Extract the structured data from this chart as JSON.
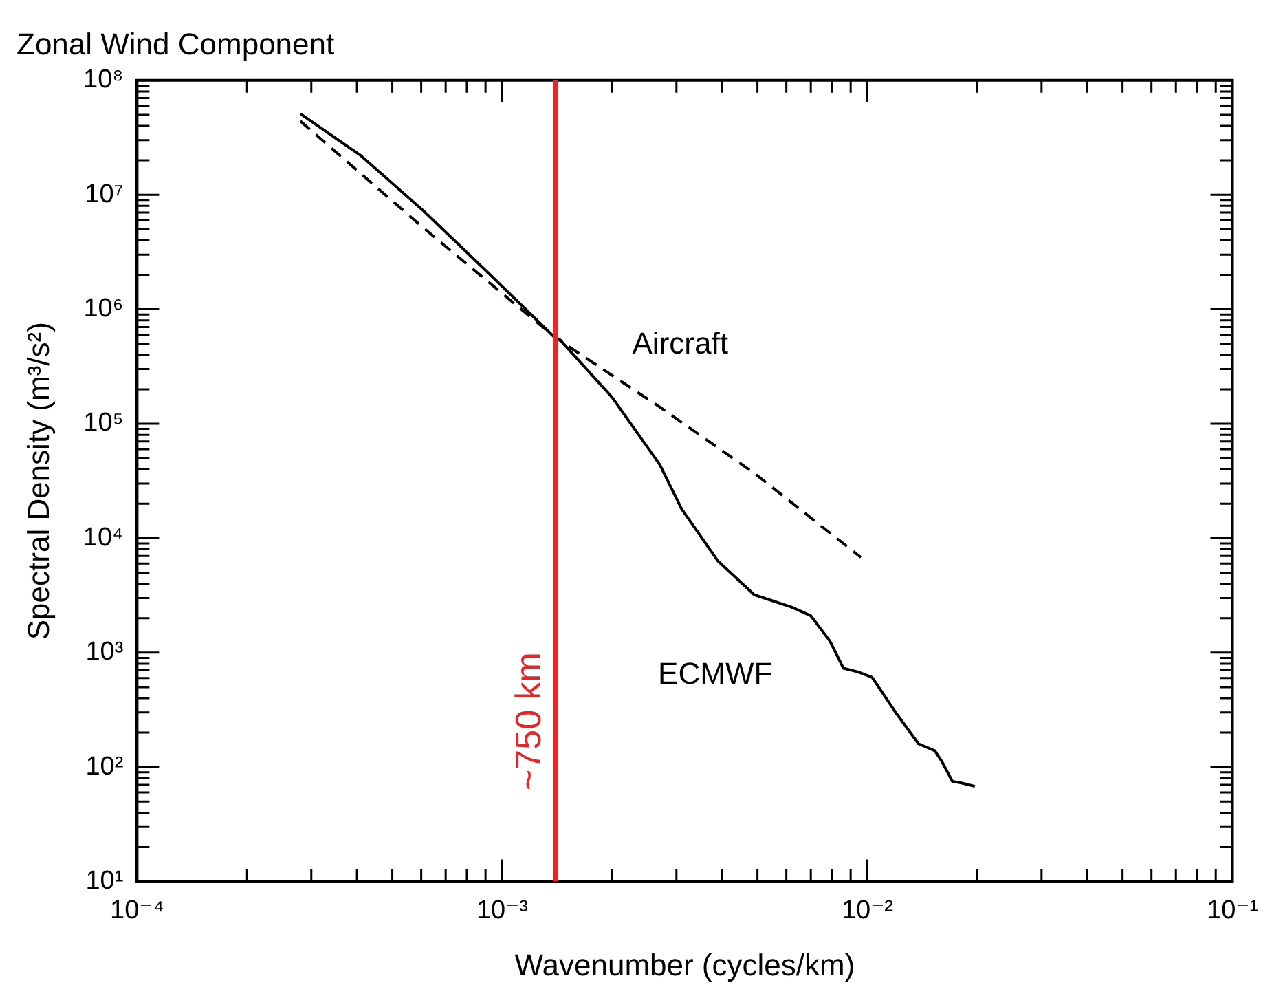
{
  "chart_data": {
    "type": "line",
    "title": "Zonal Wind Component",
    "xlabel": "Wavenumber (cycles/km)",
    "ylabel": "Spectral Density (m³/s²)",
    "log": "xy",
    "grid": false,
    "legend": false,
    "marker": "none",
    "xlim": [
      0.0001,
      0.1
    ],
    "ylim": [
      10,
      100000000
    ],
    "xticks": [
      {
        "value": 0.0001,
        "label": "10⁻⁴"
      },
      {
        "value": 0.0002,
        "label": null
      },
      {
        "value": 0.0003,
        "label": null
      },
      {
        "value": 0.0004,
        "label": null
      },
      {
        "value": 0.0005,
        "label": null
      },
      {
        "value": 0.0006,
        "label": null
      },
      {
        "value": 0.0007,
        "label": null
      },
      {
        "value": 0.0008,
        "label": null
      },
      {
        "value": 0.0009,
        "label": null
      },
      {
        "value": 0.001,
        "label": "10⁻³"
      },
      {
        "value": 0.002,
        "label": null
      },
      {
        "value": 0.003,
        "label": null
      },
      {
        "value": 0.004,
        "label": null
      },
      {
        "value": 0.005,
        "label": null
      },
      {
        "value": 0.006,
        "label": null
      },
      {
        "value": 0.007,
        "label": null
      },
      {
        "value": 0.008,
        "label": null
      },
      {
        "value": 0.009,
        "label": null
      },
      {
        "value": 0.01,
        "label": "10⁻²"
      },
      {
        "value": 0.02,
        "label": null
      },
      {
        "value": 0.03,
        "label": null
      },
      {
        "value": 0.04,
        "label": null
      },
      {
        "value": 0.05,
        "label": null
      },
      {
        "value": 0.06,
        "label": null
      },
      {
        "value": 0.07,
        "label": null
      },
      {
        "value": 0.08,
        "label": null
      },
      {
        "value": 0.09,
        "label": null
      },
      {
        "value": 0.1,
        "label": "10⁻¹"
      }
    ],
    "yticks": [
      {
        "value": 10,
        "label": "10¹"
      },
      {
        "value": 20,
        "label": null
      },
      {
        "value": 30,
        "label": null
      },
      {
        "value": 40,
        "label": null
      },
      {
        "value": 50,
        "label": null
      },
      {
        "value": 60,
        "label": null
      },
      {
        "value": 70,
        "label": null
      },
      {
        "value": 80,
        "label": null
      },
      {
        "value": 90,
        "label": null
      },
      {
        "value": 100,
        "label": "10²"
      },
      {
        "value": 200,
        "label": null
      },
      {
        "value": 300,
        "label": null
      },
      {
        "value": 400,
        "label": null
      },
      {
        "value": 500,
        "label": null
      },
      {
        "value": 600,
        "label": null
      },
      {
        "value": 700,
        "label": null
      },
      {
        "value": 800,
        "label": null
      },
      {
        "value": 900,
        "label": null
      },
      {
        "value": 1000,
        "label": "10³"
      },
      {
        "value": 2000,
        "label": null
      },
      {
        "value": 3000,
        "label": null
      },
      {
        "value": 4000,
        "label": null
      },
      {
        "value": 5000,
        "label": null
      },
      {
        "value": 6000,
        "label": null
      },
      {
        "value": 7000,
        "label": null
      },
      {
        "value": 8000,
        "label": null
      },
      {
        "value": 9000,
        "label": null
      },
      {
        "value": 10000,
        "label": "10⁴"
      },
      {
        "value": 20000,
        "label": null
      },
      {
        "value": 30000,
        "label": null
      },
      {
        "value": 40000,
        "label": null
      },
      {
        "value": 50000,
        "label": null
      },
      {
        "value": 60000,
        "label": null
      },
      {
        "value": 70000,
        "label": null
      },
      {
        "value": 80000,
        "label": null
      },
      {
        "value": 90000,
        "label": null
      },
      {
        "value": 100000,
        "label": "10⁵"
      },
      {
        "value": 200000,
        "label": null
      },
      {
        "value": 300000,
        "label": null
      },
      {
        "value": 400000,
        "label": null
      },
      {
        "value": 500000,
        "label": null
      },
      {
        "value": 600000,
        "label": null
      },
      {
        "value": 700000,
        "label": null
      },
      {
        "value": 800000,
        "label": null
      },
      {
        "value": 900000,
        "label": null
      },
      {
        "value": 1000000,
        "label": "10⁶"
      },
      {
        "value": 2000000,
        "label": null
      },
      {
        "value": 3000000,
        "label": null
      },
      {
        "value": 4000000,
        "label": null
      },
      {
        "value": 5000000,
        "label": null
      },
      {
        "value": 6000000,
        "label": null
      },
      {
        "value": 7000000,
        "label": null
      },
      {
        "value": 8000000,
        "label": null
      },
      {
        "value": 9000000,
        "label": null
      },
      {
        "value": 10000000,
        "label": "10⁷"
      },
      {
        "value": 20000000,
        "label": null
      },
      {
        "value": 30000000,
        "label": null
      },
      {
        "value": 40000000,
        "label": null
      },
      {
        "value": 50000000,
        "label": null
      },
      {
        "value": 60000000,
        "label": null
      },
      {
        "value": 70000000,
        "label": null
      },
      {
        "value": 80000000,
        "label": null
      },
      {
        "value": 90000000,
        "label": null
      },
      {
        "value": 100000000,
        "label": "10⁸"
      }
    ],
    "series": [
      {
        "name": "ECMWF",
        "color": "#000000",
        "line_style": "solid",
        "x": [
          0.00028,
          0.00041,
          0.00061,
          0.00092,
          0.00139,
          0.00144,
          0.002,
          0.0027,
          0.0031,
          0.0039,
          0.0049,
          0.0062,
          0.007,
          0.0079,
          0.0086,
          0.0094,
          0.0103,
          0.012,
          0.0138,
          0.0153,
          0.016,
          0.0171,
          0.018,
          0.0197
        ],
        "values": [
          51000000,
          22000000,
          7200000,
          2050000,
          570000,
          540000,
          170000,
          44000,
          18000,
          6300,
          3200,
          2500,
          2100,
          1260,
          730,
          680,
          610,
          295,
          160,
          139,
          112,
          75,
          73,
          68
        ]
      },
      {
        "name": "Aircraft",
        "color": "#000000",
        "line_style": "dashed",
        "x": [
          0.00028,
          0.00061,
          0.00129,
          0.00148,
          0.0027,
          0.0049,
          0.0096
        ],
        "values": [
          44000000,
          5100000,
          700000,
          500000,
          140000,
          37000,
          6800
        ]
      }
    ],
    "ref_lines": [
      {
        "axis": "x",
        "value": 0.0014,
        "label": "~750 km",
        "color": "#e8262a"
      }
    ]
  }
}
